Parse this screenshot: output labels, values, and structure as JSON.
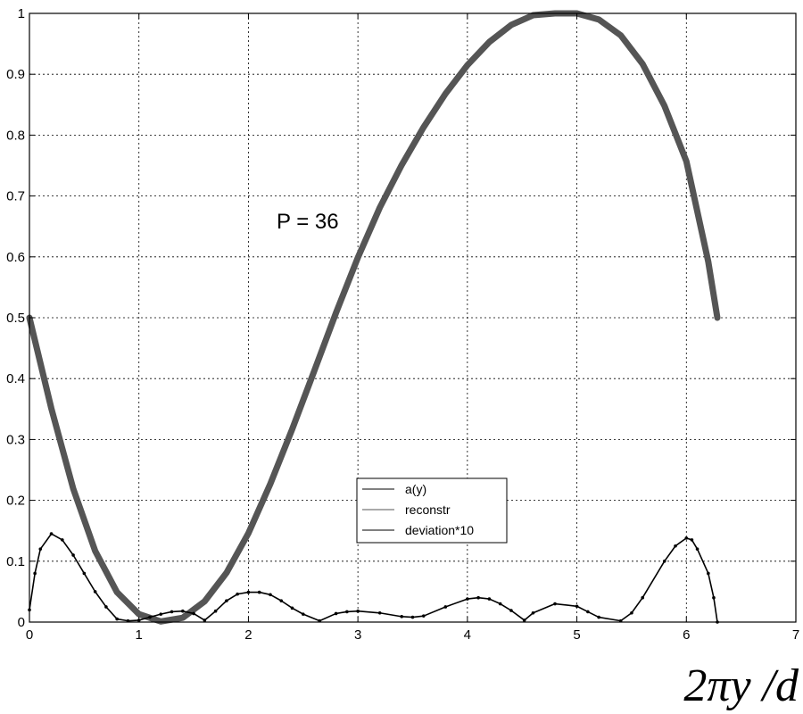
{
  "chart_data": {
    "type": "line",
    "title": "",
    "xlabel": "2πy /d",
    "ylabel": "",
    "xlim": [
      0,
      7
    ],
    "ylim": [
      0,
      1
    ],
    "xticks": [
      0,
      1,
      2,
      3,
      4,
      5,
      6,
      7
    ],
    "yticks": [
      0,
      0.1,
      0.2,
      0.3,
      0.4,
      0.5,
      0.6,
      0.7,
      0.8,
      0.9,
      1
    ],
    "xtick_labels": [
      "0",
      "1",
      "2",
      "3",
      "4",
      "5",
      "6",
      "7"
    ],
    "ytick_labels": [
      "0",
      "0.1",
      "0.2",
      "0.3",
      "0.4",
      "0.5",
      "0.6",
      "0.7",
      "0.8",
      "0.9",
      "1"
    ],
    "grid": true,
    "legend_position": "lower-center",
    "annotation": "P = 36",
    "series": [
      {
        "name": "a(y)",
        "color": "#000000",
        "x": [
          0,
          0.2,
          0.4,
          0.6,
          0.8,
          1.0,
          1.2,
          1.4,
          1.6,
          1.8,
          2.0,
          2.2,
          2.4,
          2.6,
          2.8,
          3.0,
          3.2,
          3.4,
          3.6,
          3.8,
          4.0,
          4.2,
          4.4,
          4.6,
          4.8,
          5.0,
          5.2,
          5.4,
          5.6,
          5.8,
          6.0,
          6.2,
          6.283
        ],
        "values": [
          0.5,
          0.351,
          0.219,
          0.117,
          0.049,
          0.013,
          0.001,
          0.007,
          0.034,
          0.081,
          0.146,
          0.227,
          0.317,
          0.412,
          0.508,
          0.599,
          0.681,
          0.751,
          0.813,
          0.868,
          0.915,
          0.953,
          0.981,
          0.997,
          1.0,
          1.0,
          0.99,
          0.964,
          0.917,
          0.848,
          0.757,
          0.592,
          0.5
        ]
      },
      {
        "name": "reconstr",
        "color": "#555555",
        "x": [
          0,
          0.2,
          0.4,
          0.6,
          0.8,
          1.0,
          1.2,
          1.4,
          1.6,
          1.8,
          2.0,
          2.2,
          2.4,
          2.6,
          2.8,
          3.0,
          3.2,
          3.4,
          3.6,
          3.8,
          4.0,
          4.2,
          4.4,
          4.6,
          4.8,
          5.0,
          5.2,
          5.4,
          5.6,
          5.8,
          6.0,
          6.2,
          6.283
        ],
        "values": [
          0.5,
          0.351,
          0.219,
          0.117,
          0.049,
          0.013,
          0.001,
          0.007,
          0.034,
          0.081,
          0.146,
          0.227,
          0.317,
          0.412,
          0.508,
          0.599,
          0.681,
          0.751,
          0.813,
          0.868,
          0.915,
          0.953,
          0.981,
          0.997,
          1.0,
          1.0,
          0.99,
          0.964,
          0.917,
          0.848,
          0.757,
          0.592,
          0.5
        ]
      },
      {
        "name": "deviation*10",
        "color": "#000000",
        "x": [
          0,
          0.05,
          0.1,
          0.2,
          0.3,
          0.4,
          0.5,
          0.6,
          0.7,
          0.8,
          0.9,
          1.0,
          1.1,
          1.2,
          1.3,
          1.4,
          1.5,
          1.6,
          1.7,
          1.8,
          1.9,
          2.0,
          2.1,
          2.2,
          2.3,
          2.4,
          2.5,
          2.65,
          2.8,
          2.9,
          3.0,
          3.2,
          3.4,
          3.5,
          3.6,
          3.8,
          4.0,
          4.1,
          4.2,
          4.3,
          4.4,
          4.52,
          4.6,
          4.8,
          5.0,
          5.1,
          5.2,
          5.4,
          5.5,
          5.6,
          5.8,
          5.9,
          6.0,
          6.05,
          6.1,
          6.2,
          6.25,
          6.283
        ],
        "values": [
          0.02,
          0.08,
          0.12,
          0.145,
          0.135,
          0.11,
          0.08,
          0.05,
          0.025,
          0.005,
          0.002,
          0.003,
          0.008,
          0.013,
          0.017,
          0.018,
          0.014,
          0.003,
          0.018,
          0.035,
          0.046,
          0.049,
          0.049,
          0.045,
          0.035,
          0.023,
          0.013,
          0.002,
          0.014,
          0.017,
          0.018,
          0.015,
          0.009,
          0.008,
          0.01,
          0.025,
          0.038,
          0.04,
          0.038,
          0.03,
          0.019,
          0.003,
          0.015,
          0.03,
          0.026,
          0.017,
          0.008,
          0.002,
          0.015,
          0.04,
          0.1,
          0.125,
          0.138,
          0.135,
          0.12,
          0.08,
          0.04,
          0.0
        ]
      }
    ]
  }
}
